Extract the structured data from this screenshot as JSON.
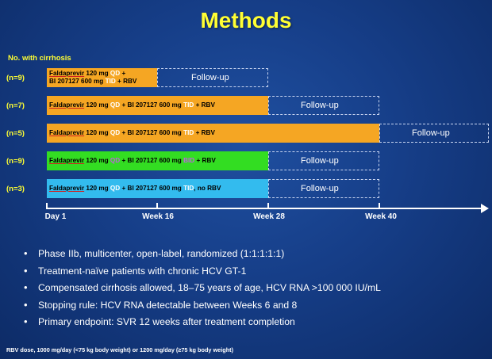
{
  "title": "Methods",
  "subheading": "No. with cirrhosis",
  "arms": [
    {
      "n": "(n=9)",
      "color": "#f5a623",
      "lines": [
        [
          {
            "t": "Faldaprevir",
            "drug": true
          },
          {
            "t": " 120 mg "
          },
          {
            "t": "QD",
            "hl": "white"
          },
          {
            "t": " +"
          }
        ],
        [
          {
            "t": "BI 207127 600 mg "
          },
          {
            "t": "TID",
            "hl": "white"
          },
          {
            "t": " + RBV"
          }
        ]
      ],
      "follow_up": "Follow-up"
    },
    {
      "n": "(n=7)",
      "color": "#f5a623",
      "lines": [
        [
          {
            "t": "Faldaprevir",
            "drug": true
          },
          {
            "t": " 120 mg "
          },
          {
            "t": "QD",
            "hl": "white"
          },
          {
            "t": " + BI 207127 600 mg "
          },
          {
            "t": "TID",
            "hl": "white"
          },
          {
            "t": " + RBV"
          }
        ]
      ],
      "follow_up": "Follow-up"
    },
    {
      "n": "(n=5)",
      "color": "#f5a623",
      "lines": [
        [
          {
            "t": "Faldaprevir",
            "drug": true
          },
          {
            "t": " 120 mg "
          },
          {
            "t": "QD",
            "hl": "white"
          },
          {
            "t": " + BI 207127 600 mg "
          },
          {
            "t": "TID",
            "hl": "white"
          },
          {
            "t": " + RBV"
          }
        ]
      ],
      "follow_up": "Follow-up"
    },
    {
      "n": "(n=9)",
      "color": "#33dd22",
      "lines": [
        [
          {
            "t": "Faldaprevir",
            "drug": true
          },
          {
            "t": " 120 mg "
          },
          {
            "t": "QD",
            "hl": "purple"
          },
          {
            "t": " + BI 207127 600 mg "
          },
          {
            "t": "BID",
            "hl": "purple"
          },
          {
            "t": " + RBV"
          }
        ]
      ],
      "follow_up": "Follow-up"
    },
    {
      "n": "(n=3)",
      "color": "#33bbee",
      "lines": [
        [
          {
            "t": "Faldaprevir",
            "drug": true
          },
          {
            "t": " 120 mg "
          },
          {
            "t": "QD",
            "hl": "white"
          },
          {
            "t": " + BI 207127 600 mg "
          },
          {
            "t": "TID",
            "hl": "white"
          },
          {
            "t": ", no RBV"
          }
        ]
      ],
      "follow_up": "Follow-up"
    }
  ],
  "timeline": [
    "Day 1",
    "Week 16",
    "Week 28",
    "Week 40"
  ],
  "bullets": [
    "Phase IIb, multicenter, open-label, randomized (1:1:1:1:1)",
    "Treatment-naïve patients with chronic HCV GT-1",
    "Compensated cirrhosis allowed, 18–75 years of age, HCV RNA >100 000 IU/mL",
    "Stopping rule: HCV RNA detectable between Weeks 6 and 8",
    "Primary endpoint: SVR 12 weeks after treatment completion"
  ],
  "footnote": "RBV dose, 1000 mg/day (<75 kg body weight) or 1200 mg/day (≥75 kg body weight)"
}
